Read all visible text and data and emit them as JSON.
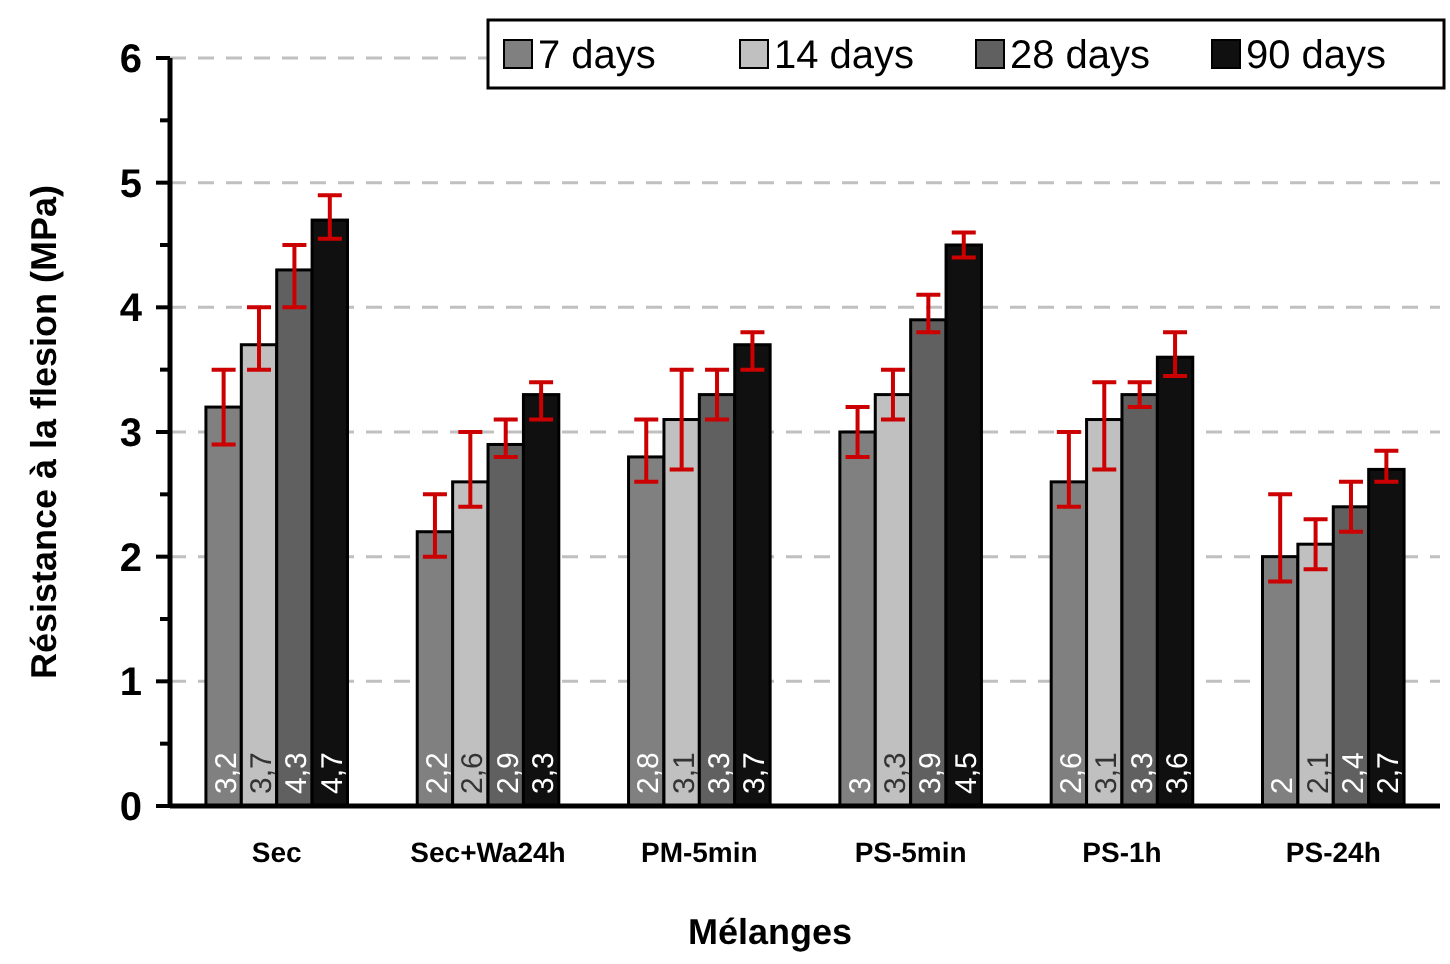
{
  "chart_data": {
    "type": "bar",
    "xlabel": "Mélanges",
    "ylabel": "Résistance à la flesion (MPa)",
    "categories": [
      "Sec",
      "Sec+Wa24h",
      "PM-5min",
      "PS-5min",
      "PS-1h",
      "PS-24h"
    ],
    "series": [
      {
        "name": "7 days",
        "color": "#808080",
        "values": [
          3.2,
          2.2,
          2.8,
          3.0,
          2.6,
          2.0
        ],
        "value_labels": [
          "3,2",
          "2,2",
          "2,8",
          "3",
          "2,6",
          "2"
        ],
        "errors": [
          [
            2.9,
            3.5
          ],
          [
            2.0,
            2.5
          ],
          [
            2.6,
            3.1
          ],
          [
            2.8,
            3.2
          ],
          [
            2.4,
            3.0
          ],
          [
            1.8,
            2.5
          ]
        ]
      },
      {
        "name": "14 days",
        "color": "#c0c0c0",
        "values": [
          3.7,
          2.6,
          3.1,
          3.3,
          3.1,
          2.1
        ],
        "value_labels": [
          "3,7",
          "2,6",
          "3,1",
          "3,3",
          "3,1",
          "2,1"
        ],
        "errors": [
          [
            3.5,
            4.0
          ],
          [
            2.4,
            3.0
          ],
          [
            2.7,
            3.5
          ],
          [
            3.1,
            3.5
          ],
          [
            2.7,
            3.4
          ],
          [
            1.9,
            2.3
          ]
        ]
      },
      {
        "name": "28 days",
        "color": "#606060",
        "values": [
          4.3,
          2.9,
          3.3,
          3.9,
          3.3,
          2.4
        ],
        "value_labels": [
          "4,3",
          "2,9",
          "3,3",
          "3,9",
          "3,3",
          "2,4"
        ],
        "errors": [
          [
            4.0,
            4.5
          ],
          [
            2.8,
            3.1
          ],
          [
            3.1,
            3.5
          ],
          [
            3.8,
            4.1
          ],
          [
            3.2,
            3.4
          ],
          [
            2.2,
            2.6
          ]
        ]
      },
      {
        "name": "90 days",
        "color": "#101010",
        "values": [
          4.7,
          3.3,
          3.7,
          4.5,
          3.6,
          2.7
        ],
        "value_labels": [
          "4,7",
          "3,3",
          "3,7",
          "4,5",
          "3,6",
          "2,7"
        ],
        "errors": [
          [
            4.55,
            4.9
          ],
          [
            3.1,
            3.4
          ],
          [
            3.5,
            3.8
          ],
          [
            4.4,
            4.6
          ],
          [
            3.45,
            3.8
          ],
          [
            2.6,
            2.85
          ]
        ]
      }
    ],
    "ylim": [
      0,
      6
    ],
    "yticks": [
      0,
      {
        "value": 0.5,
        "label": null
      },
      1,
      {
        "value": 1.5,
        "label": null
      },
      2,
      {
        "value": 2.5,
        "label": null
      },
      3,
      {
        "value": 3.5,
        "label": null
      },
      4,
      {
        "value": 4.5,
        "label": null
      },
      5,
      {
        "value": 5.5,
        "label": null
      },
      6
    ],
    "grid": "y",
    "legend": "top right"
  }
}
